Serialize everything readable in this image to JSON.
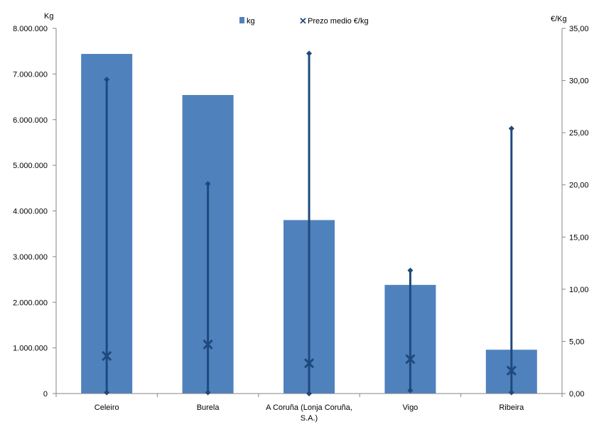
{
  "chart_data": {
    "type": "bar",
    "categories": [
      "Celeiro",
      "Burela",
      "A Coruña (Lonja Coruña, S.A.)",
      "Vigo",
      "Ribeira"
    ],
    "category_lines": [
      [
        "Celeiro"
      ],
      [
        "Burela"
      ],
      [
        "A Coruña (Lonja Coruña,",
        "S.A.)"
      ],
      [
        "Vigo"
      ],
      [
        "Ribeira"
      ]
    ],
    "series": [
      {
        "name": "kg",
        "type": "bar",
        "axis": "left",
        "color": "#4f81bd",
        "values": [
          7440000,
          6540000,
          3800000,
          2380000,
          960000
        ]
      },
      {
        "name": "Prezo medio €/kg",
        "type": "high-low-average",
        "axis": "right",
        "color": "#1f497d",
        "high": [
          30.1,
          20.1,
          32.6,
          11.8,
          25.4
        ],
        "low": [
          0.1,
          0.1,
          0.0,
          0.3,
          0.1
        ],
        "average": [
          3.6,
          4.7,
          2.9,
          3.3,
          2.2
        ]
      }
    ],
    "ylabel_left": "Kg",
    "ylabel_right": "€/Kg",
    "ylim_left": [
      0,
      8000000
    ],
    "ylim_right": [
      0,
      35
    ],
    "yticks_left": [
      "0",
      "1.000.000",
      "2.000.000",
      "3.000.000",
      "4.000.000",
      "5.000.000",
      "6.000.000",
      "7.000.000",
      "8.000.000"
    ],
    "yticks_right": [
      "0,00",
      "5,00",
      "10,00",
      "15,00",
      "20,00",
      "25,00",
      "30,00",
      "35,00"
    ],
    "grid": false,
    "legend_placement": "top"
  }
}
